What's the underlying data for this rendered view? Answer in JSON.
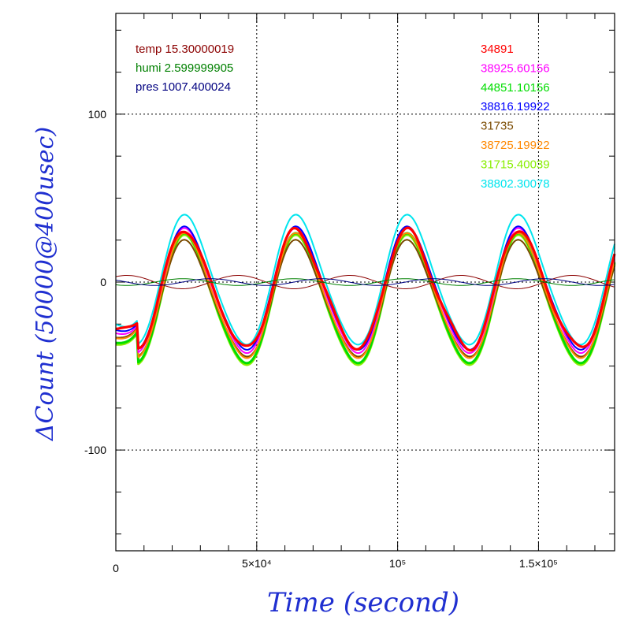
{
  "chart_data": {
    "type": "line",
    "xlabel": "Time (second)",
    "ylabel": "ΔCount (50000@400usec)",
    "xlim": [
      0,
      177000
    ],
    "ylim": [
      -160,
      160
    ],
    "grid": "dotted at labeled ticks",
    "x_ticks": [
      {
        "value": 0,
        "label": "0"
      },
      {
        "value": 50000,
        "label": "5×10⁴"
      },
      {
        "value": 100000,
        "label": "10⁵"
      },
      {
        "value": 150000,
        "label": "1.5×10⁵"
      }
    ],
    "y_ticks": [
      {
        "value": 100,
        "label": "100"
      },
      {
        "value": 0,
        "label": "0"
      },
      {
        "value": -100,
        "label": "-100"
      }
    ],
    "period": 39500,
    "env_legend": [
      {
        "text": "temp 15.30000019",
        "color": "#8b0000"
      },
      {
        "text": "humi 2.599999905",
        "color": "#008000"
      },
      {
        "text": "pres 1007.400024",
        "color": "#000080"
      }
    ],
    "series": [
      {
        "name": "34891",
        "color": "#ff0000",
        "peak": 29,
        "trough": -40
      },
      {
        "name": "38925.60156",
        "color": "#ff00ff",
        "peak": 30,
        "trough": -43
      },
      {
        "name": "44851.10156",
        "color": "#00dd00",
        "peak": 27,
        "trough": -49
      },
      {
        "name": "38816.19922",
        "color": "#0000ff",
        "peak": 31,
        "trough": -41
      },
      {
        "name": "31735",
        "color": "#7a4a00",
        "peak": 23,
        "trough": -45
      },
      {
        "name": "38725.19922",
        "color": "#ff8800",
        "peak": 27,
        "trough": -46
      },
      {
        "name": "31715.40039",
        "color": "#88ee00",
        "peak": 26,
        "trough": -50
      },
      {
        "name": "38802.30078",
        "color": "#00e5ee",
        "peak": 38,
        "trough": -38
      }
    ],
    "env_series": [
      {
        "name": "temp",
        "color": "#8b0000",
        "amplitude": 4,
        "phase": 0.15
      },
      {
        "name": "humi",
        "color": "#008000",
        "amplitude": 2,
        "phase": 0.65
      },
      {
        "name": "pres",
        "color": "#000080",
        "amplitude": 2,
        "phase": 0.4
      }
    ]
  }
}
